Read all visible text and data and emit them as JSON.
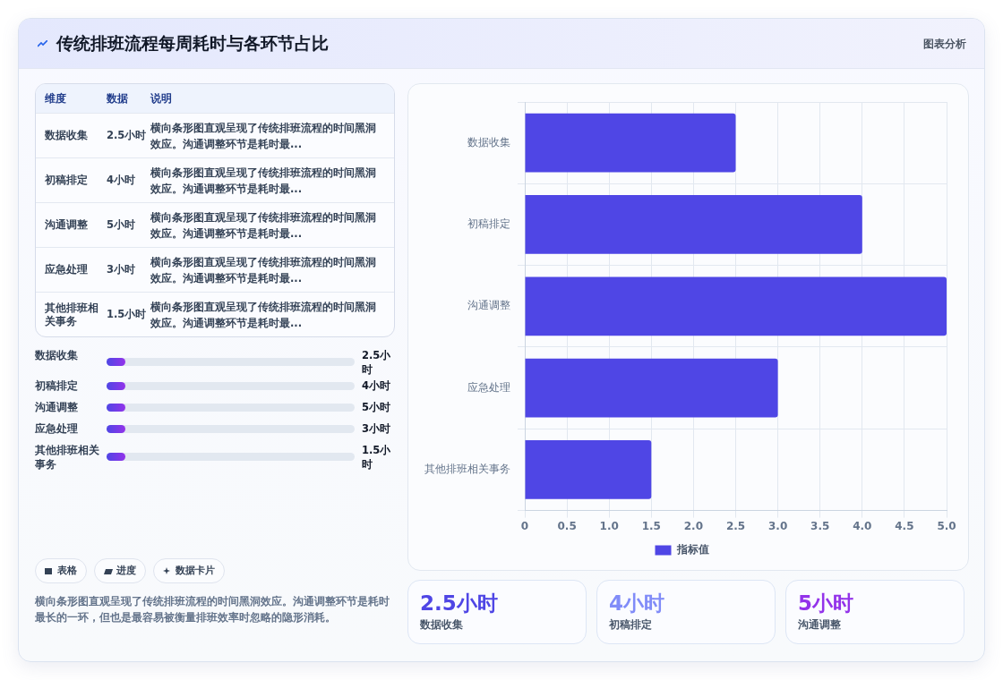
{
  "chart_data": [
    {
      "type": "bar",
      "orientation": "horizontal",
      "title": "传统排班流程每周耗时与各环节占比",
      "subtitle": "图表分析",
      "categories": [
        "数据收集",
        "初稿排定",
        "沟通调整",
        "应急处理",
        "其他排班相关事务"
      ],
      "series": [
        {
          "name": "指标值",
          "color": "#4f46e5",
          "values": [
            2.5,
            4,
            5,
            3,
            1.5
          ]
        }
      ],
      "xlim": [
        0,
        5
      ],
      "xticks": [
        0,
        0.5,
        {
          "value": 1,
          "label": "1.0"
        },
        1.5,
        {
          "value": 2,
          "label": "2.0"
        },
        2.5,
        {
          "value": 3,
          "label": "3.0"
        },
        3.5,
        {
          "value": 4,
          "label": "4.0"
        },
        4.5,
        {
          "value": 5,
          "label": "5.0"
        }
      ],
      "grid": true,
      "legend": "bottom"
    },
    {
      "type": "other",
      "annotations": [
        "维度",
        "数据",
        "说明",
        "数据收集",
        "2.5小时",
        "横向条形图直观呈现了传统排班流程的时间黑洞效应。沟通调整环节是耗时最...",
        "初稿排定",
        "4小时",
        "横向条形图直观呈现了传统排班流程的时间黑洞效应。沟通调整环节是耗时最...",
        "沟通调整",
        "5小时",
        "横向条形图直观呈现了传统排班流程的时间黑洞效应。沟通调整环节是耗时最...",
        "应急处理",
        "3小时",
        "横向条形图直观呈现了传统排班流程的时间黑洞效应。沟通调整环节是耗时最...",
        "其他排班相关事务",
        "1.5小时",
        "横向条形图直观呈现了传统排班流程的时间黑洞效应。沟通调整环节是耗时最..."
      ]
    },
    {
      "type": "other",
      "annotations": [
        "数据收集",
        "2.5小时",
        "初稿排定",
        "4小时",
        "沟通调整",
        "5小时",
        "应急处理",
        "3小时",
        "其他排班相关事务",
        "1.5小时"
      ]
    },
    {
      "type": "other",
      "annotations": [
        "表格",
        "进度",
        "数据卡片",
        "横向条形图直观呈现了传统排班流程的时间黑洞效应。沟通调整环节是耗时最长的一环，但也是最容易被衡量排班效率时忽略的隐形消耗。"
      ]
    },
    {
      "type": "other",
      "colors": [
        "#4f46e5",
        "#818cf8",
        "#9333ea"
      ],
      "annotations": [
        "2.5小时",
        "数据收集",
        "4小时",
        "初稿排定",
        "5小时",
        "沟通调整"
      ]
    }
  ]
}
